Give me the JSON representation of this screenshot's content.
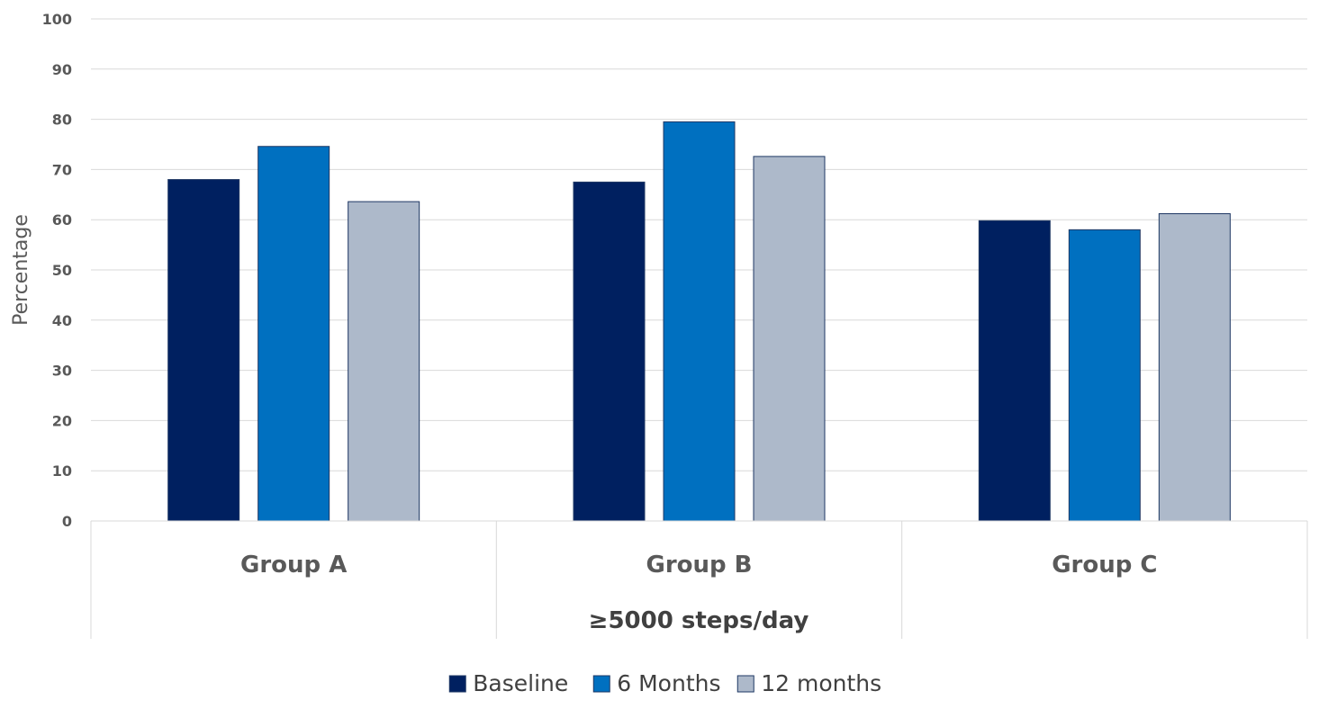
{
  "chart_data": {
    "type": "bar",
    "title": "",
    "ylabel": "Percentage",
    "xlabel": "",
    "group_label": "≥5000 steps/day",
    "categories": [
      "Group A",
      "Group B",
      "Group C"
    ],
    "ylim": [
      0,
      100
    ],
    "yticks": [
      0,
      10,
      20,
      30,
      40,
      50,
      60,
      70,
      80,
      90,
      100
    ],
    "grid": true,
    "legend_position": "bottom",
    "series": [
      {
        "name": "Baseline",
        "color": "#002060",
        "values": [
          68,
          67.5,
          59.8
        ]
      },
      {
        "name": "6 Months",
        "color": "#0070C0",
        "values": [
          74.6,
          79.5,
          58
        ]
      },
      {
        "name": "12 months",
        "color": "#ADB9CA",
        "values": [
          63.6,
          72.6,
          61.2
        ]
      }
    ]
  }
}
